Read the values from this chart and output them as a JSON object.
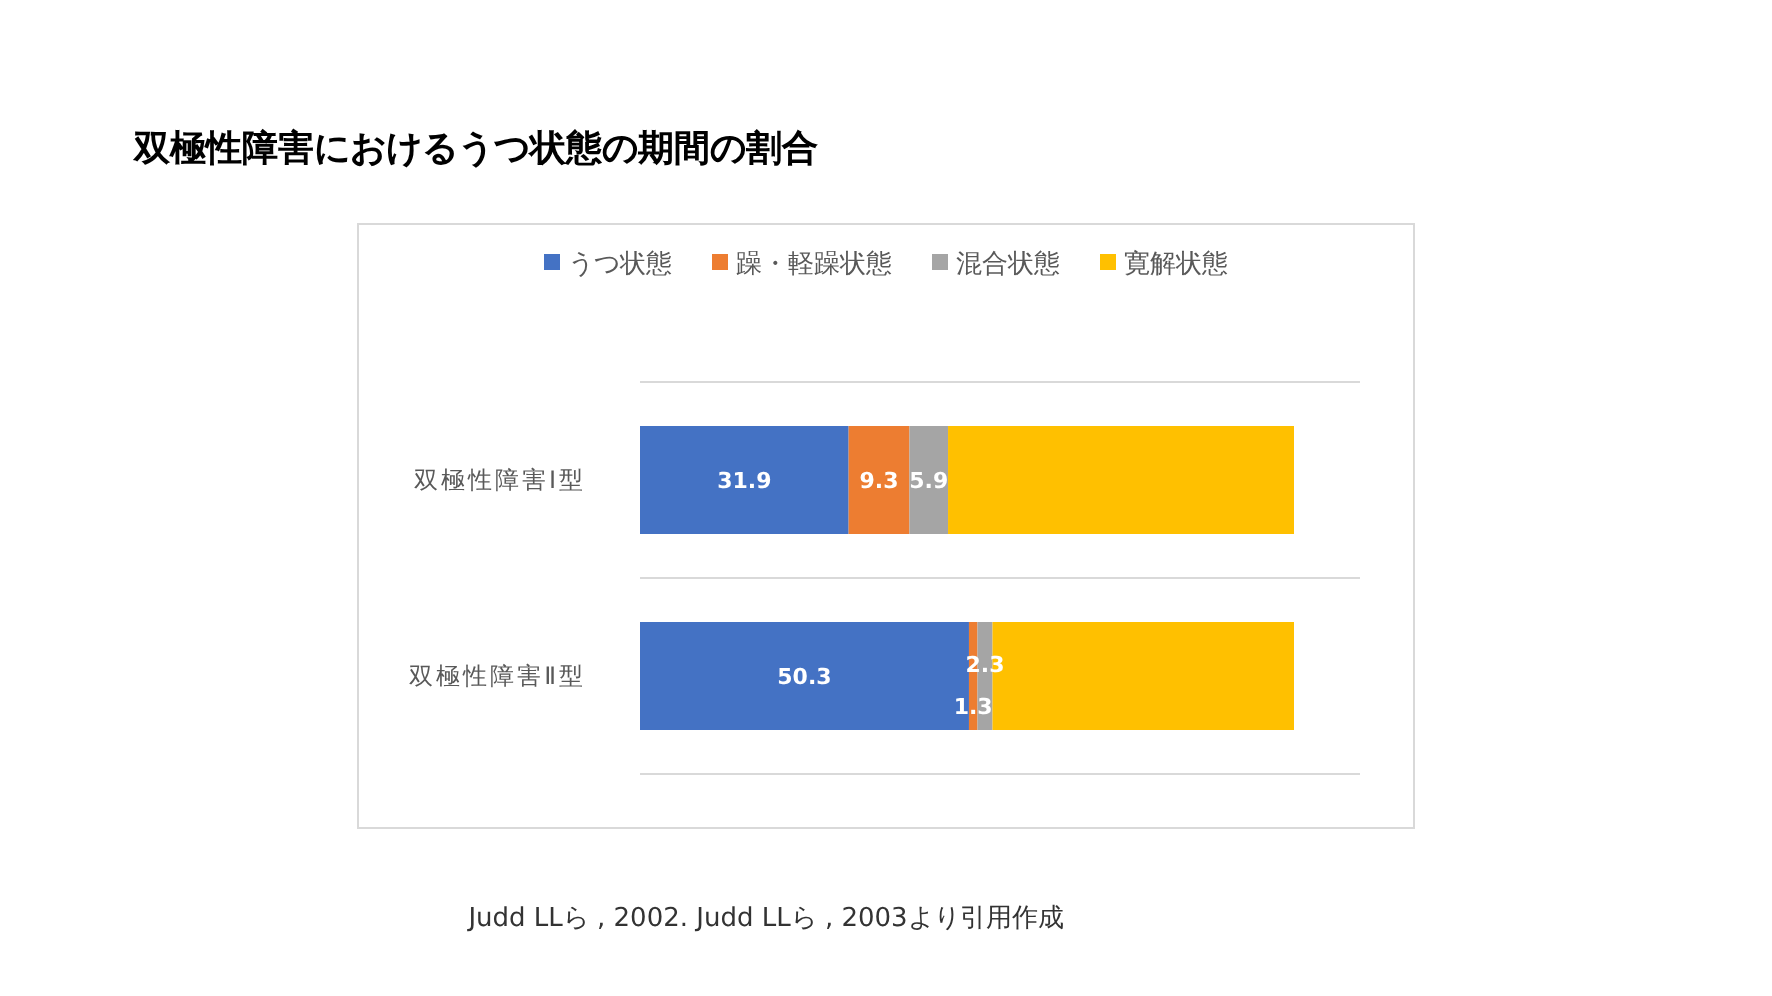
{
  "chart_data": {
    "type": "bar",
    "title": "双極性障害におけるうつ状態の期間の割合",
    "orientation": "horizontal",
    "stacked": true,
    "categories": [
      "双極性障害Ⅰ型",
      "双極性障害Ⅱ型"
    ],
    "series": [
      {
        "name": "うつ状態",
        "color": "#4472c4",
        "values": [
          31.9,
          50.3
        ],
        "value_labels": [
          "31.9",
          "50.3"
        ]
      },
      {
        "name": "躁・軽躁状態",
        "color": "#ed7d31",
        "values": [
          9.3,
          1.3
        ],
        "value_labels": [
          "9.3",
          "1.3"
        ]
      },
      {
        "name": "混合状態",
        "color": "#a5a5a5",
        "values": [
          5.9,
          2.3
        ],
        "value_labels": [
          "5.9",
          "2.3"
        ]
      },
      {
        "name": "寛解状態",
        "color": "#ffc000",
        "values": [
          52.9,
          46.1
        ]
      }
    ],
    "xlim": [
      0,
      100
    ],
    "grid": "y",
    "legend": "top",
    "tick_labels": "y",
    "annotations": [
      "Judd LLら , 2002. Judd LLら , 2003より引用作成"
    ]
  }
}
